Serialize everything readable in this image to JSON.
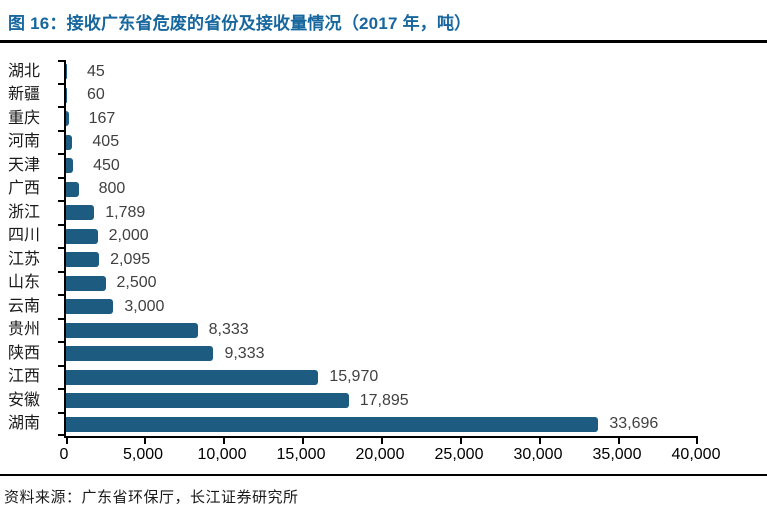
{
  "title": "图 16：接收广东省危废的省份及接收量情况（2017 年，吨）",
  "source_note": "资料来源：广东省环保厅，长江证券研究所",
  "colors": {
    "bar": "#1d5b80",
    "title": "#17679e",
    "value_label": "#404040",
    "axis": "#000000"
  },
  "chart_data": {
    "type": "bar",
    "orientation": "horizontal",
    "title": "接收广东省危废的省份及接收量情况（2017 年，吨）",
    "categories": [
      "湖北",
      "新疆",
      "重庆",
      "河南",
      "天津",
      "广西",
      "浙江",
      "四川",
      "江苏",
      "山东",
      "云南",
      "贵州",
      "陕西",
      "江西",
      "安徽",
      "湖南"
    ],
    "values": [
      45,
      60,
      167,
      405,
      450,
      800,
      1789,
      2000,
      2095,
      2500,
      3000,
      8333,
      9333,
      15970,
      17895,
      33696
    ],
    "value_labels": [
      "45",
      "60",
      "167",
      "405",
      "450",
      "800",
      "1,789",
      "2,000",
      "2,095",
      "2,500",
      "3,000",
      "8,333",
      "9,333",
      "15,970",
      "17,895",
      "33,696"
    ],
    "xlabel": "",
    "ylabel": "",
    "xlim": [
      0,
      40000
    ],
    "x_ticks": [
      0,
      5000,
      10000,
      15000,
      20000,
      25000,
      30000,
      35000,
      40000
    ],
    "x_tick_labels": [
      "0",
      "5,000",
      "10,000",
      "15,000",
      "20,000",
      "25,000",
      "30,000",
      "35,000",
      "40,000"
    ],
    "grid": false,
    "legend": false
  }
}
